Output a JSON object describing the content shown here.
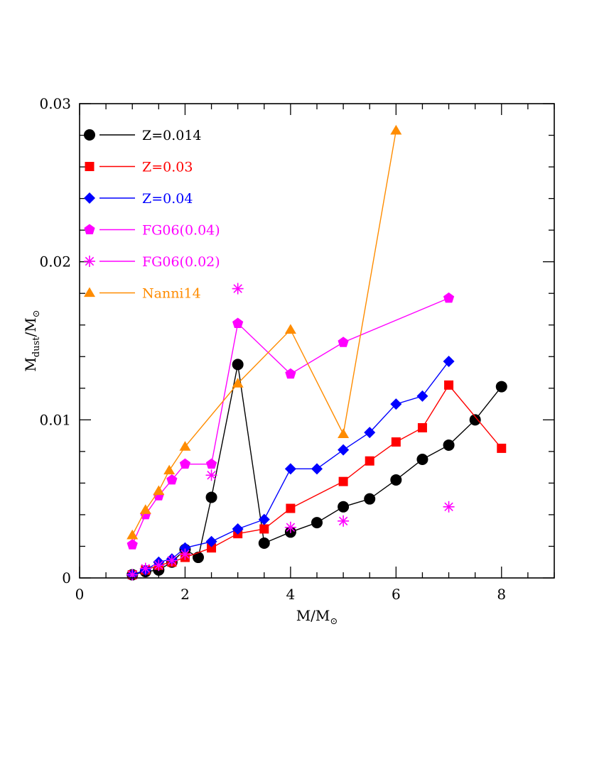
{
  "chart_data": {
    "type": "line",
    "xlabel": "M/M⊙",
    "ylabel": "Mdust/M⊙",
    "xlabel_parts": {
      "main": "M/M",
      "sub": "⊙"
    },
    "ylabel_parts": {
      "main": "M",
      "sub": "dust",
      "rest": "/M",
      "sub2": "⊙"
    },
    "xlim": [
      0,
      9
    ],
    "ylim": [
      0,
      0.03
    ],
    "x_ticks": [
      "0",
      "2",
      "4",
      "6",
      "8"
    ],
    "x_tick_values": [
      0,
      2,
      4,
      6,
      8
    ],
    "y_ticks": [
      "0",
      "0.01",
      "0.02",
      "0.03"
    ],
    "y_tick_values": [
      0,
      0.01,
      0.02,
      0.03
    ],
    "legend_position": "top-left",
    "series": [
      {
        "name": "Z=0.014",
        "color": "#000000",
        "marker": "circle",
        "line": true,
        "x": [
          1.0,
          1.25,
          1.5,
          1.75,
          2.0,
          2.25,
          2.5,
          3.0,
          3.5,
          4.0,
          4.5,
          5.0,
          5.5,
          6.0,
          6.5,
          7.0,
          7.5,
          8.0
        ],
        "y": [
          0.0002,
          0.0004,
          0.0005,
          0.001,
          0.0018,
          0.0013,
          0.0051,
          0.0135,
          0.0022,
          0.0029,
          0.0035,
          0.0045,
          0.005,
          0.0062,
          0.0075,
          0.0084,
          0.01,
          0.0121
        ]
      },
      {
        "name": "Z=0.03",
        "color": "#ff0000",
        "marker": "square",
        "line": true,
        "x": [
          1.0,
          1.25,
          1.5,
          1.75,
          2.0,
          2.5,
          3.0,
          3.5,
          4.0,
          5.0,
          5.5,
          6.0,
          6.5,
          7.0,
          8.0
        ],
        "y": [
          0.0002,
          0.0005,
          0.0008,
          0.001,
          0.0013,
          0.0019,
          0.0028,
          0.0031,
          0.0044,
          0.0061,
          0.0074,
          0.0086,
          0.0095,
          0.0122,
          0.0082
        ]
      },
      {
        "name": "Z=0.04",
        "color": "#0000ff",
        "marker": "diamond",
        "line": true,
        "x": [
          1.0,
          1.25,
          1.5,
          1.75,
          2.0,
          2.5,
          3.0,
          3.5,
          4.0,
          4.5,
          5.0,
          5.5,
          6.0,
          6.5,
          7.0
        ],
        "y": [
          0.0002,
          0.0005,
          0.001,
          0.0012,
          0.0019,
          0.0023,
          0.0031,
          0.0037,
          0.0069,
          0.0069,
          0.0081,
          0.0092,
          0.011,
          0.0115,
          0.0137
        ]
      },
      {
        "name": "FG06(0.04)",
        "color": "#ff00ff",
        "marker": "pentagon",
        "line": true,
        "x": [
          1.0,
          1.25,
          1.5,
          1.75,
          2.0,
          2.5,
          3.0,
          4.0,
          5.0,
          7.0
        ],
        "y": [
          0.0021,
          0.004,
          0.0052,
          0.0062,
          0.0072,
          0.0072,
          0.0161,
          0.0129,
          0.0149,
          0.0177
        ]
      },
      {
        "name": "FG06(0.02)",
        "color": "#ff00ff",
        "marker": "asterisk",
        "line": false,
        "x": [
          1.0,
          1.25,
          1.5,
          1.75,
          2.0,
          2.5,
          3.0,
          4.0,
          5.0,
          7.0
        ],
        "y": [
          0.0002,
          0.0006,
          0.0008,
          0.0011,
          0.0015,
          0.0065,
          0.0183,
          0.0032,
          0.0036,
          0.0045
        ]
      },
      {
        "name": "Nanni14",
        "color": "#ff8c00",
        "marker": "triangle",
        "line": true,
        "x": [
          1.0,
          1.25,
          1.5,
          1.7,
          2.0,
          3.0,
          4.0,
          5.0,
          6.0
        ],
        "y": [
          0.0027,
          0.0043,
          0.0055,
          0.0068,
          0.0083,
          0.0123,
          0.0157,
          0.0091,
          0.0283
        ]
      }
    ]
  }
}
